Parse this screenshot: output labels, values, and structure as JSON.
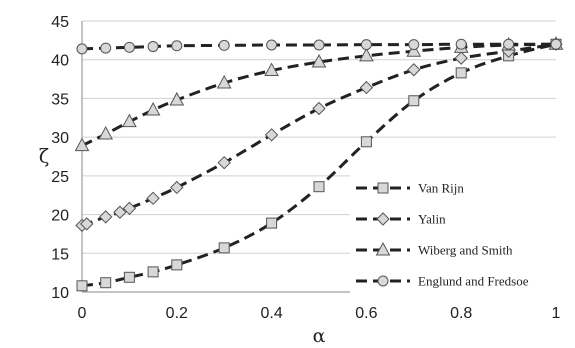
{
  "chart_data": {
    "type": "line",
    "title": "",
    "xlabel": "α",
    "ylabel": "ζ",
    "xlim": [
      0,
      1
    ],
    "ylim": [
      10,
      45
    ],
    "x_ticks": [
      "0",
      "0.2",
      "0.4",
      "0.6",
      "0.8",
      "1"
    ],
    "y_ticks": [
      "10",
      "15",
      "20",
      "25",
      "30",
      "35",
      "40",
      "45"
    ],
    "grid": "horizontal",
    "legend_position": "bottom-right",
    "series": [
      {
        "name": "Van Rijn",
        "marker": "square",
        "x": [
          0,
          0.05,
          0.1,
          0.15,
          0.2,
          0.3,
          0.4,
          0.5,
          0.6,
          0.7,
          0.8,
          0.9,
          1.0
        ],
        "y": [
          10.8,
          11.2,
          11.9,
          12.6,
          13.5,
          15.7,
          18.9,
          23.6,
          29.4,
          34.7,
          38.3,
          40.5,
          42.0
        ]
      },
      {
        "name": "Yalin",
        "marker": "diamond",
        "x": [
          0,
          0.01,
          0.05,
          0.08,
          0.1,
          0.15,
          0.2,
          0.3,
          0.4,
          0.5,
          0.6,
          0.7,
          0.8,
          0.9,
          1.0
        ],
        "y": [
          18.6,
          18.8,
          19.7,
          20.3,
          20.8,
          22.1,
          23.5,
          26.7,
          30.3,
          33.7,
          36.4,
          38.7,
          40.2,
          41.1,
          42.0
        ]
      },
      {
        "name": "Wiberg and Smith",
        "marker": "triangle",
        "x": [
          0,
          0.05,
          0.1,
          0.15,
          0.2,
          0.3,
          0.4,
          0.5,
          0.6,
          0.7,
          0.8,
          0.9,
          1.0
        ],
        "y": [
          28.9,
          30.4,
          32.0,
          33.5,
          34.8,
          37.0,
          38.6,
          39.7,
          40.5,
          41.1,
          41.6,
          41.9,
          42.0
        ]
      },
      {
        "name": "Englund and Fredsoe",
        "marker": "circle",
        "x": [
          0,
          0.05,
          0.1,
          0.15,
          0.2,
          0.3,
          0.4,
          0.5,
          0.6,
          0.7,
          0.8,
          0.9,
          1.0
        ],
        "y": [
          41.4,
          41.5,
          41.6,
          41.7,
          41.8,
          41.85,
          41.9,
          41.9,
          41.95,
          41.95,
          42.0,
          42.0,
          42.0
        ]
      }
    ],
    "colors": {
      "line": "#222222",
      "marker_fill": "#d8d8d8",
      "marker_stroke": "#555555",
      "grid": "#d0d0d0",
      "background": "#ffffff"
    }
  }
}
